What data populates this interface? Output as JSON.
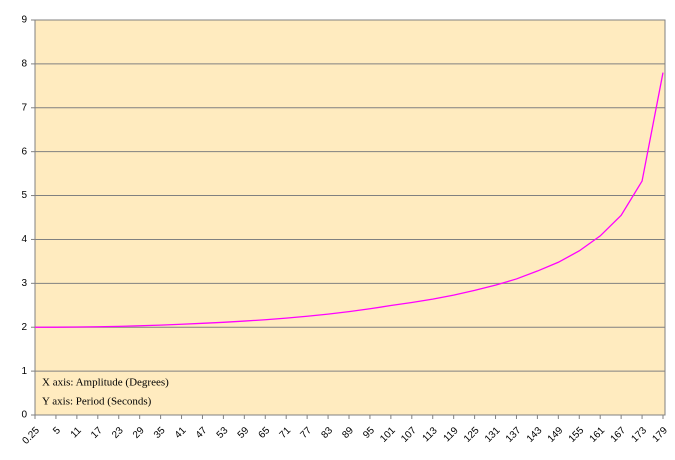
{
  "chart_data": {
    "type": "line",
    "categories": [
      "0.25",
      "5",
      "11",
      "17",
      "23",
      "29",
      "35",
      "41",
      "47",
      "53",
      "59",
      "65",
      "71",
      "77",
      "83",
      "89",
      "95",
      "101",
      "107",
      "113",
      "119",
      "125",
      "131",
      "137",
      "143",
      "149",
      "155",
      "161",
      "167",
      "173",
      "179"
    ],
    "series": [
      {
        "name": null,
        "color": "#ff00ff",
        "values": [
          2.0,
          2.001,
          2.005,
          2.011,
          2.02,
          2.033,
          2.048,
          2.067,
          2.089,
          2.112,
          2.14,
          2.17,
          2.208,
          2.25,
          2.298,
          2.355,
          2.42,
          2.494,
          2.564,
          2.64,
          2.732,
          2.84,
          2.96,
          3.1,
          3.28,
          3.48,
          3.74,
          4.08,
          4.55,
          5.33,
          7.8
        ]
      }
    ],
    "ylim": [
      0,
      9
    ],
    "yticks": [
      0,
      1,
      2,
      3,
      4,
      5,
      6,
      7,
      8,
      9
    ],
    "grid": true,
    "background": "#ffebbf",
    "annotations": [
      "X axis: Amplitude (Degrees)",
      "Y axis: Period (Seconds)"
    ]
  }
}
